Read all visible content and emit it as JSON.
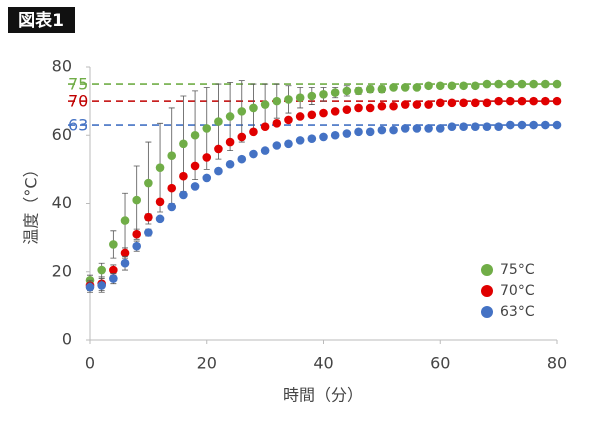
{
  "badge": "図表1",
  "chart_data": {
    "type": "scatter",
    "x_label": "時間（分）",
    "y_label": "温度（°C）",
    "x": [
      0,
      2,
      4,
      6,
      8,
      10,
      12,
      14,
      16,
      18,
      20,
      22,
      24,
      26,
      28,
      30,
      32,
      34,
      36,
      38,
      40,
      42,
      44,
      46,
      48,
      50,
      52,
      54,
      56,
      58,
      60,
      62,
      64,
      66,
      68,
      70,
      72,
      74,
      76,
      78,
      80
    ],
    "series": [
      {
        "name": "75°C",
        "color": "#70ad47",
        "values": [
          17.5,
          20.5,
          28,
          35,
          41,
          46,
          50.5,
          54,
          57.5,
          60,
          62,
          64,
          65.5,
          67,
          68,
          69,
          70,
          70.5,
          71,
          71.5,
          72,
          72.5,
          73,
          73,
          73.5,
          73.5,
          74,
          74,
          74,
          74.5,
          74.5,
          74.5,
          74.5,
          74.5,
          75,
          75,
          75,
          75,
          75,
          75,
          75
        ],
        "errors": [
          1.5,
          2,
          4,
          8,
          10,
          12,
          13,
          14,
          14,
          13,
          12,
          11,
          10,
          9,
          7,
          6,
          5,
          4,
          3,
          2.5,
          2,
          1.5,
          1.5,
          1,
          1,
          1,
          0.5,
          0.5,
          0.5,
          0.5,
          0.5,
          0.5,
          0.5,
          0.5,
          0.5,
          0.5,
          0.5,
          0.5,
          0.5,
          0.5,
          0.5
        ]
      },
      {
        "name": "70°C",
        "color": "#e00000",
        "values": [
          16,
          16.5,
          20.5,
          25.5,
          31,
          36,
          40.5,
          44.5,
          48,
          51,
          53.5,
          56,
          58,
          59.5,
          61,
          62.5,
          63.5,
          64.5,
          65.5,
          66,
          66.5,
          67,
          67.5,
          68,
          68,
          68.5,
          68.5,
          69,
          69,
          69,
          69.5,
          69.5,
          69.5,
          69.5,
          69.5,
          70,
          70,
          70,
          70,
          70,
          70
        ],
        "errors": [
          1.5,
          2,
          1.5,
          1.5,
          1.5,
          1,
          0.5,
          0.5,
          0.5,
          0.5,
          0.5,
          0.5,
          0.5,
          0.5,
          0.5,
          0.5,
          0.5,
          0.5,
          0.5,
          0.5,
          0.5,
          0.5,
          0.5,
          0.5,
          0.5,
          0.5,
          0.5,
          0.5,
          0.5,
          0.5,
          0.5,
          0.5,
          0.5,
          0.5,
          0.5,
          0.5,
          0.5,
          0.5,
          0.5,
          0.5,
          0.5
        ]
      },
      {
        "name": "63°C",
        "color": "#4472c4",
        "values": [
          15.5,
          16,
          18,
          22.5,
          27.5,
          31.5,
          35.5,
          39,
          42.5,
          45,
          47.5,
          49.5,
          51.5,
          53,
          54.5,
          55.5,
          57,
          57.5,
          58.5,
          59,
          59.5,
          60,
          60.5,
          61,
          61,
          61.5,
          61.5,
          62,
          62,
          62,
          62,
          62.5,
          62.5,
          62.5,
          62.5,
          62.5,
          63,
          63,
          63,
          63,
          63
        ],
        "errors": [
          1.5,
          2,
          1.5,
          2,
          1.5,
          1,
          0.5,
          0.5,
          0.5,
          0.5,
          0.5,
          0.5,
          0.5,
          0.5,
          0.5,
          0.5,
          0.5,
          0.5,
          0.5,
          0.5,
          0.5,
          0.5,
          0.5,
          0.5,
          0.5,
          0.5,
          0.5,
          0.5,
          0.5,
          0.5,
          0.5,
          0.5,
          0.5,
          0.5,
          0.5,
          0.5,
          0.5,
          0.5,
          0.5,
          0.5,
          0.5
        ]
      }
    ],
    "reference_lines": [
      {
        "value": 75,
        "color": "#70ad47"
      },
      {
        "value": 70,
        "color": "#c00000"
      },
      {
        "value": 63,
        "color": "#4472c4"
      }
    ],
    "xlim": [
      0,
      80
    ],
    "xticks": [
      0,
      20,
      40,
      60,
      80
    ],
    "ylim": [
      0,
      80
    ],
    "yticks": [
      0,
      20,
      40,
      60,
      80
    ],
    "grid": false,
    "legend": "lower right"
  }
}
